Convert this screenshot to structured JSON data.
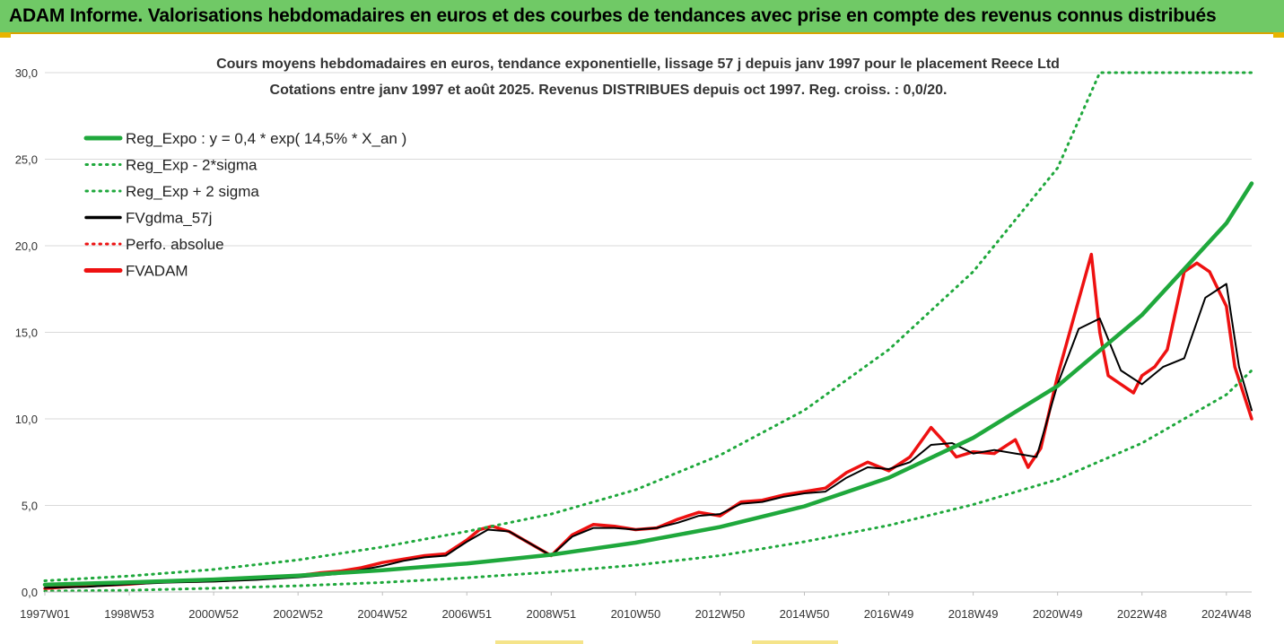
{
  "banner": {
    "title": "ADAM Informe. Valorisations hebdomadaires en euros et des courbes de tendances avec prise en compte des revenus connus distribués"
  },
  "colors": {
    "banner_bg": "#70c966",
    "banner_accent": "#d9a400",
    "trend_green": "#1fa83c",
    "adam_red": "#ee1111",
    "gdma_black": "#000000"
  },
  "chart_data": {
    "type": "line",
    "title_lines": [
      "Cours moyens hebdomadaires en euros, tendance exponentielle, lissage 57 j depuis janv 1997 pour le placement Reece Ltd",
      "Cotations entre janv 1997 et août 2025. Revenus DISTRIBUES depuis oct 1997. Reg. croiss. : 0,0/20."
    ],
    "x_range": [
      1997.0,
      2025.6
    ],
    "ylim": [
      0,
      30
    ],
    "y_ticks": [
      "0,0",
      "5,0",
      "10,0",
      "15,0",
      "20,0",
      "25,0",
      "30,0"
    ],
    "x_ticks": [
      {
        "label": "1997W01",
        "x": 1997.0
      },
      {
        "label": "1998W53",
        "x": 1999.0
      },
      {
        "label": "2000W52",
        "x": 2001.0
      },
      {
        "label": "2002W52",
        "x": 2003.0
      },
      {
        "label": "2004W52",
        "x": 2005.0
      },
      {
        "label": "2006W51",
        "x": 2007.0
      },
      {
        "label": "2008W51",
        "x": 2009.0
      },
      {
        "label": "2010W50",
        "x": 2011.0
      },
      {
        "label": "2012W50",
        "x": 2013.0
      },
      {
        "label": "2014W50",
        "x": 2015.0
      },
      {
        "label": "2016W49",
        "x": 2017.0
      },
      {
        "label": "2018W49",
        "x": 2019.0
      },
      {
        "label": "2020W49",
        "x": 2021.0
      },
      {
        "label": "2022W48",
        "x": 2023.0
      },
      {
        "label": "2024W48",
        "x": 2025.0
      }
    ],
    "grid": "horizontal",
    "legend_position": "top-left",
    "series": [
      {
        "name": "Reg_Expo : y = 0,4 * exp( 14,5% *  X_an )",
        "color": "#1fa83c",
        "style": "solid",
        "width": 4.5,
        "x": [
          1997.0,
          1999.0,
          2001.0,
          2003.0,
          2005.0,
          2007.0,
          2009.0,
          2011.0,
          2013.0,
          2015.0,
          2017.0,
          2019.0,
          2021.0,
          2023.0,
          2025.0,
          2025.6
        ],
        "y": [
          0.42,
          0.56,
          0.72,
          0.95,
          1.26,
          1.65,
          2.15,
          2.85,
          3.75,
          4.95,
          6.6,
          8.9,
          11.9,
          16.0,
          21.3,
          23.6
        ]
      },
      {
        "name": "Reg_Exp - 2*sigma",
        "color": "#1fa83c",
        "style": "dotted",
        "width": 3,
        "x": [
          1997.0,
          1999.0,
          2001.0,
          2003.0,
          2005.0,
          2007.0,
          2009.0,
          2011.0,
          2013.0,
          2015.0,
          2017.0,
          2019.0,
          2021.0,
          2023.0,
          2025.0,
          2025.6
        ],
        "y": [
          0.05,
          0.1,
          0.22,
          0.36,
          0.55,
          0.82,
          1.15,
          1.55,
          2.1,
          2.9,
          3.85,
          5.05,
          6.5,
          8.6,
          11.4,
          12.8
        ]
      },
      {
        "name": "Reg_Exp + 2 sigma",
        "color": "#1fa83c",
        "style": "dotted",
        "width": 3,
        "x": [
          1997.0,
          1999.0,
          2001.0,
          2003.0,
          2005.0,
          2007.0,
          2009.0,
          2011.0,
          2013.0,
          2015.0,
          2017.0,
          2019.0,
          2021.0,
          2022.0,
          2025.6
        ],
        "y": [
          0.65,
          0.92,
          1.3,
          1.85,
          2.6,
          3.5,
          4.5,
          5.9,
          7.9,
          10.5,
          14.0,
          18.5,
          24.5,
          30.0,
          30.0
        ]
      },
      {
        "name": "FVgdma_57j",
        "color": "#000000",
        "style": "solid",
        "width": 2,
        "x": [
          1997.0,
          1998.0,
          1999.0,
          2000.0,
          2001.0,
          2002.0,
          2003.0,
          2004.0,
          2005.0,
          2005.5,
          2006.0,
          2006.5,
          2007.0,
          2007.5,
          2008.0,
          2008.5,
          2009.0,
          2009.5,
          2010.0,
          2010.5,
          2011.0,
          2011.5,
          2012.0,
          2012.5,
          2013.0,
          2013.5,
          2014.0,
          2014.5,
          2015.0,
          2015.5,
          2016.0,
          2016.5,
          2017.0,
          2017.5,
          2018.0,
          2018.5,
          2019.0,
          2019.5,
          2020.0,
          2020.5,
          2021.0,
          2021.5,
          2022.0,
          2022.5,
          2023.0,
          2023.5,
          2024.0,
          2024.5,
          2025.0,
          2025.3,
          2025.6
        ],
        "y": [
          0.25,
          0.3,
          0.45,
          0.55,
          0.6,
          0.7,
          0.85,
          1.05,
          1.5,
          1.8,
          2.0,
          2.1,
          2.9,
          3.6,
          3.5,
          2.8,
          2.1,
          3.2,
          3.7,
          3.7,
          3.6,
          3.7,
          4.0,
          4.4,
          4.5,
          5.1,
          5.2,
          5.5,
          5.7,
          5.8,
          6.6,
          7.2,
          7.1,
          7.5,
          8.5,
          8.6,
          8.0,
          8.2,
          8.0,
          7.8,
          12.0,
          15.2,
          15.8,
          12.8,
          12.0,
          13.0,
          13.5,
          17.0,
          17.8,
          13.0,
          10.5
        ]
      },
      {
        "name": "Perfo. absolue",
        "color": "#ee1111",
        "style": "dotted",
        "width": 2.5,
        "x": [],
        "y": []
      },
      {
        "name": "FVADAM",
        "color": "#ee1111",
        "style": "solid",
        "width": 3.5,
        "x": [
          1997.0,
          1997.5,
          1998.0,
          1998.5,
          1999.0,
          1999.5,
          2000.0,
          2000.5,
          2001.0,
          2001.5,
          2002.0,
          2002.5,
          2003.0,
          2003.5,
          2004.0,
          2004.5,
          2005.0,
          2005.5,
          2006.0,
          2006.5,
          2007.0,
          2007.3,
          2007.6,
          2008.0,
          2008.5,
          2009.0,
          2009.5,
          2010.0,
          2010.5,
          2011.0,
          2011.5,
          2012.0,
          2012.5,
          2013.0,
          2013.5,
          2014.0,
          2014.5,
          2015.0,
          2015.5,
          2016.0,
          2016.5,
          2017.0,
          2017.5,
          2018.0,
          2018.3,
          2018.6,
          2019.0,
          2019.5,
          2020.0,
          2020.3,
          2020.6,
          2021.0,
          2021.4,
          2021.8,
          2022.0,
          2022.2,
          2022.5,
          2022.8,
          2023.0,
          2023.3,
          2023.6,
          2024.0,
          2024.3,
          2024.6,
          2025.0,
          2025.2,
          2025.4,
          2025.6
        ],
        "y": [
          0.2,
          0.3,
          0.35,
          0.4,
          0.45,
          0.55,
          0.6,
          0.62,
          0.65,
          0.7,
          0.75,
          0.9,
          0.95,
          1.1,
          1.2,
          1.4,
          1.7,
          1.9,
          2.1,
          2.2,
          3.0,
          3.6,
          3.8,
          3.5,
          2.8,
          2.1,
          3.3,
          3.9,
          3.8,
          3.6,
          3.7,
          4.2,
          4.6,
          4.4,
          5.2,
          5.3,
          5.6,
          5.8,
          6.0,
          6.9,
          7.5,
          7.0,
          7.8,
          9.5,
          8.7,
          7.8,
          8.1,
          8.0,
          8.8,
          7.2,
          8.3,
          12.5,
          16.0,
          19.5,
          15.0,
          12.5,
          12.0,
          11.5,
          12.5,
          13.0,
          14.0,
          18.5,
          19.0,
          18.5,
          16.5,
          13.0,
          11.5,
          10.0
        ]
      }
    ]
  }
}
